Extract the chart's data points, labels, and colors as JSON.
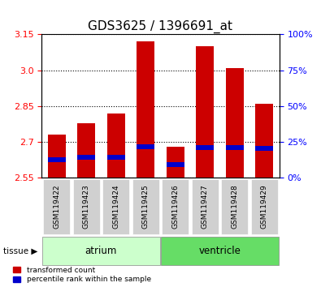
{
  "title": "GDS3625 / 1396691_at",
  "samples": [
    "GSM119422",
    "GSM119423",
    "GSM119424",
    "GSM119425",
    "GSM119426",
    "GSM119427",
    "GSM119428",
    "GSM119429"
  ],
  "ymin": 2.55,
  "ymax": 3.15,
  "yticks_left": [
    2.55,
    2.7,
    2.85,
    3.0,
    3.15
  ],
  "yticks_right_vals": [
    2.55,
    2.7,
    2.85,
    3.0,
    3.15
  ],
  "yticks_right_labels": [
    "0%",
    "25%",
    "50%",
    "75%",
    "100%"
  ],
  "bar_tops": [
    2.73,
    2.78,
    2.82,
    3.12,
    2.68,
    3.1,
    3.01,
    2.86
  ],
  "blue_bottoms": [
    2.615,
    2.625,
    2.625,
    2.67,
    2.595,
    2.668,
    2.668,
    2.665
  ],
  "blue_tops": [
    2.635,
    2.645,
    2.645,
    2.69,
    2.615,
    2.688,
    2.688,
    2.685
  ],
  "bar_color": "#cc0000",
  "blue_color": "#0000cc",
  "base": 2.55,
  "groups": [
    {
      "label": "atrium",
      "start": 0,
      "end": 3,
      "color": "#ccffcc"
    },
    {
      "label": "ventricle",
      "start": 4,
      "end": 7,
      "color": "#66dd66"
    }
  ],
  "tissue_label": "tissue",
  "legend_red": "transformed count",
  "legend_blue": "percentile rank within the sample",
  "bar_width": 0.6,
  "title_fontsize": 11,
  "axis_label_fontsize": 9,
  "tick_fontsize": 8
}
